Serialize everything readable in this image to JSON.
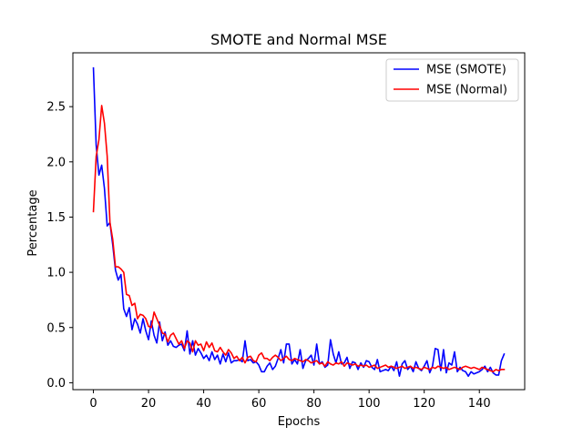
{
  "chart_data": {
    "type": "line",
    "title": "SMOTE and Normal MSE",
    "xlabel": "Epochs",
    "ylabel": "Percentage",
    "xlim": [
      -7.45,
      156.45
    ],
    "ylim": [
      -0.0625,
      2.9875
    ],
    "xticks": [
      0,
      20,
      40,
      60,
      80,
      100,
      120,
      140
    ],
    "xtick_labels": [
      "0",
      "20",
      "40",
      "60",
      "80",
      "100",
      "120",
      "140"
    ],
    "yticks": [
      0.0,
      0.5,
      1.0,
      1.5,
      2.0,
      2.5
    ],
    "ytick_labels": [
      "0.0",
      "0.5",
      "1.0",
      "1.5",
      "2.0",
      "2.5"
    ],
    "grid": false,
    "legend_position": "top-right",
    "series": [
      {
        "name": "MSE (SMOTE)",
        "color": "#0000ff",
        "x_start": 0,
        "values": [
          2.85,
          2.15,
          1.88,
          1.97,
          1.76,
          1.42,
          1.45,
          1.25,
          1.02,
          0.93,
          0.98,
          0.67,
          0.6,
          0.68,
          0.48,
          0.58,
          0.53,
          0.45,
          0.58,
          0.47,
          0.39,
          0.56,
          0.43,
          0.36,
          0.55,
          0.38,
          0.46,
          0.34,
          0.38,
          0.33,
          0.32,
          0.34,
          0.35,
          0.29,
          0.47,
          0.26,
          0.38,
          0.25,
          0.31,
          0.27,
          0.22,
          0.25,
          0.2,
          0.28,
          0.21,
          0.25,
          0.17,
          0.26,
          0.19,
          0.27,
          0.18,
          0.2,
          0.2,
          0.21,
          0.19,
          0.38,
          0.2,
          0.21,
          0.18,
          0.19,
          0.16,
          0.1,
          0.1,
          0.15,
          0.18,
          0.12,
          0.15,
          0.22,
          0.3,
          0.18,
          0.35,
          0.35,
          0.17,
          0.21,
          0.17,
          0.3,
          0.13,
          0.2,
          0.22,
          0.25,
          0.16,
          0.35,
          0.17,
          0.19,
          0.14,
          0.16,
          0.39,
          0.26,
          0.18,
          0.28,
          0.17,
          0.18,
          0.23,
          0.13,
          0.19,
          0.18,
          0.12,
          0.18,
          0.14,
          0.2,
          0.19,
          0.14,
          0.12,
          0.21,
          0.1,
          0.11,
          0.12,
          0.11,
          0.15,
          0.11,
          0.19,
          0.06,
          0.17,
          0.2,
          0.12,
          0.15,
          0.1,
          0.19,
          0.13,
          0.11,
          0.15,
          0.2,
          0.09,
          0.15,
          0.31,
          0.3,
          0.11,
          0.3,
          0.09,
          0.18,
          0.16,
          0.28,
          0.1,
          0.14,
          0.11,
          0.1,
          0.06,
          0.1,
          0.08,
          0.09,
          0.1,
          0.12,
          0.15,
          0.1,
          0.14,
          0.09,
          0.07,
          0.07,
          0.2,
          0.26
        ]
      },
      {
        "name": "MSE (Normal)",
        "color": "#ff0000",
        "x_start": 0,
        "values": [
          1.55,
          2.05,
          2.2,
          2.51,
          2.35,
          2.05,
          1.45,
          1.3,
          1.05,
          1.05,
          1.03,
          1.0,
          0.8,
          0.79,
          0.7,
          0.72,
          0.58,
          0.62,
          0.61,
          0.58,
          0.51,
          0.5,
          0.64,
          0.58,
          0.52,
          0.45,
          0.44,
          0.37,
          0.43,
          0.45,
          0.4,
          0.35,
          0.38,
          0.31,
          0.38,
          0.36,
          0.28,
          0.38,
          0.34,
          0.35,
          0.29,
          0.37,
          0.32,
          0.36,
          0.29,
          0.28,
          0.32,
          0.28,
          0.25,
          0.3,
          0.27,
          0.22,
          0.24,
          0.2,
          0.23,
          0.18,
          0.23,
          0.24,
          0.2,
          0.19,
          0.25,
          0.27,
          0.22,
          0.22,
          0.2,
          0.23,
          0.25,
          0.23,
          0.2,
          0.22,
          0.24,
          0.21,
          0.2,
          0.22,
          0.21,
          0.2,
          0.19,
          0.21,
          0.2,
          0.18,
          0.19,
          0.2,
          0.17,
          0.18,
          0.15,
          0.19,
          0.17,
          0.16,
          0.18,
          0.17,
          0.19,
          0.15,
          0.18,
          0.17,
          0.16,
          0.17,
          0.15,
          0.16,
          0.15,
          0.16,
          0.14,
          0.15,
          0.16,
          0.13,
          0.14,
          0.15,
          0.16,
          0.14,
          0.15,
          0.14,
          0.13,
          0.14,
          0.15,
          0.13,
          0.14,
          0.15,
          0.13,
          0.14,
          0.13,
          0.12,
          0.14,
          0.13,
          0.12,
          0.14,
          0.13,
          0.15,
          0.14,
          0.13,
          0.14,
          0.12,
          0.13,
          0.14,
          0.13,
          0.12,
          0.14,
          0.15,
          0.14,
          0.13,
          0.14,
          0.13,
          0.12,
          0.14,
          0.13,
          0.12,
          0.11,
          0.1,
          0.12,
          0.11,
          0.12,
          0.12
        ]
      }
    ]
  }
}
